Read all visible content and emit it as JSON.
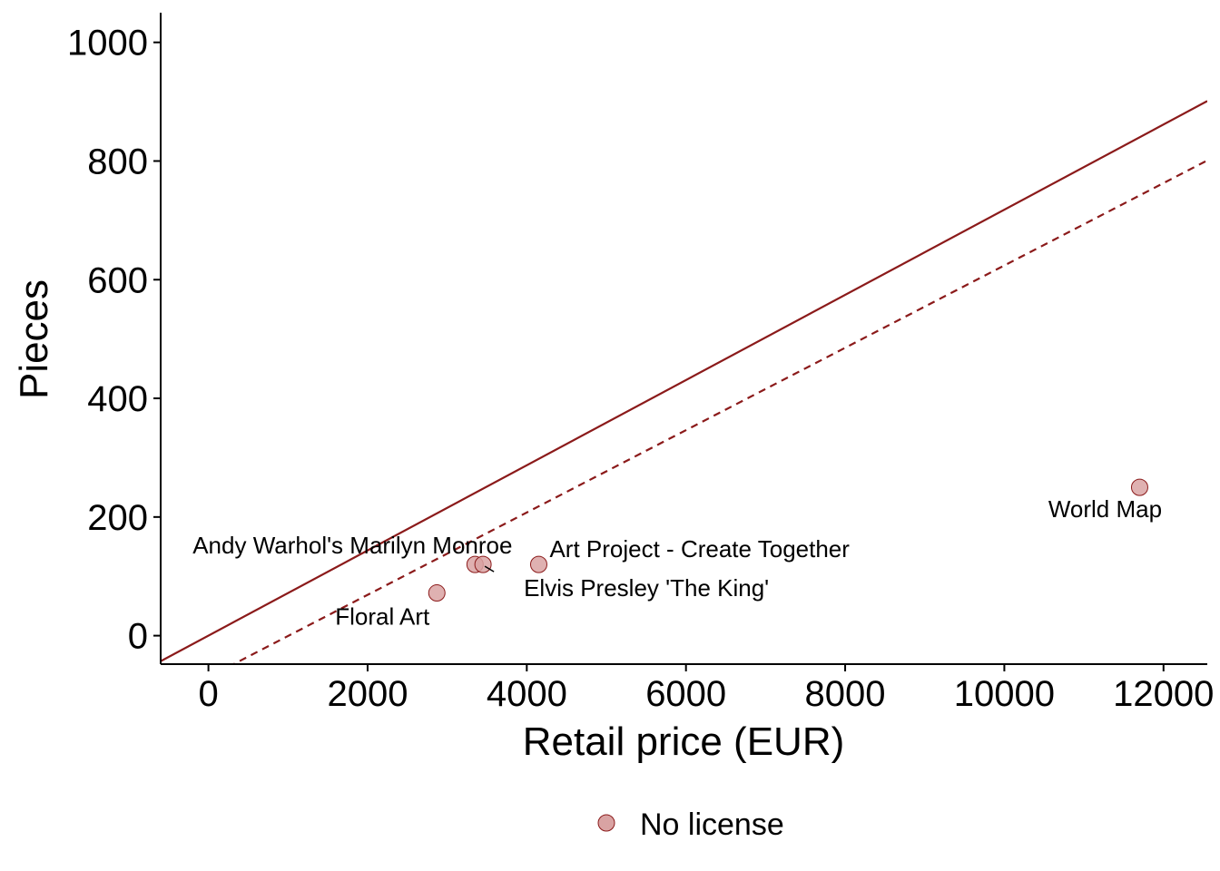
{
  "chart_data": {
    "type": "scatter",
    "xlabel": "Retail price (EUR)",
    "ylabel": "Pieces",
    "xlim": [
      -600,
      12550
    ],
    "ylim": [
      -48,
      1050
    ],
    "x_ticks": [
      0,
      2000,
      4000,
      6000,
      8000,
      10000,
      12000
    ],
    "y_ticks": [
      0,
      200,
      400,
      600,
      800,
      1000
    ],
    "grid": false,
    "series": [
      {
        "name": "No license",
        "color": "#d9a3a3",
        "stroke": "#8b1a1a",
        "points": [
          {
            "label": "World Map",
            "x": 11700,
            "y": 250
          },
          {
            "label": "Art Project - Create Together",
            "x": 4150,
            "y": 120
          },
          {
            "label": "Andy Warhol's Marilyn Monroe",
            "x": 3350,
            "y": 120
          },
          {
            "label": "Elvis Presley  'The King'",
            "x": 3450,
            "y": 120
          },
          {
            "label": "Floral Art",
            "x": 2870,
            "y": 72
          }
        ]
      }
    ],
    "reference_lines": [
      {
        "style": "solid",
        "color": "#8b1a1a",
        "intercept": 0,
        "slope": 0.0718
      },
      {
        "style": "dashed",
        "color": "#8b1a1a",
        "intercept": -70,
        "slope": 0.0694
      }
    ],
    "legend": {
      "position": "bottom",
      "entries": [
        "No license"
      ]
    }
  }
}
